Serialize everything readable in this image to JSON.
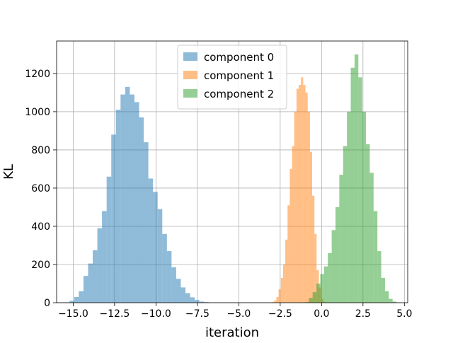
{
  "chart_data": {
    "type": "histogram",
    "title": "",
    "xlabel": "iteration",
    "ylabel": "KL",
    "xlim": [
      -16,
      5.2
    ],
    "ylim": [
      0,
      1370
    ],
    "grid": true,
    "legend_position": "top-center",
    "x_ticks": [
      -15.0,
      -12.5,
      -10.0,
      -7.5,
      -5.0,
      -2.5,
      0.0,
      2.5,
      5.0
    ],
    "x_tick_labels": [
      "−15.0",
      "−12.5",
      "−10.0",
      "−7.5",
      "−5.0",
      "−2.5",
      "0.0",
      "2.5",
      "5.0"
    ],
    "y_ticks": [
      0,
      200,
      400,
      600,
      800,
      1000,
      1200
    ],
    "y_tick_labels": [
      "0",
      "200",
      "400",
      "600",
      "800",
      "1000",
      "1200"
    ],
    "series": [
      {
        "name": "component 0",
        "color": "#1f77b4",
        "opacity": 0.5,
        "bin_start": -15.5,
        "bin_width": 0.28,
        "counts": [
          2,
          10,
          30,
          60,
          140,
          205,
          275,
          390,
          480,
          660,
          880,
          1010,
          1090,
          1130,
          1090,
          1050,
          970,
          840,
          650,
          580,
          490,
          360,
          270,
          185,
          125,
          80,
          50,
          28,
          14,
          6,
          3
        ]
      },
      {
        "name": "component 1",
        "color": "#ff7f0e",
        "opacity": 0.5,
        "bin_start": -3.0,
        "bin_width": 0.135,
        "counts": [
          3,
          12,
          30,
          70,
          130,
          200,
          330,
          510,
          700,
          820,
          1000,
          1120,
          1140,
          1180,
          1140,
          1100,
          1000,
          790,
          560,
          360,
          170,
          80,
          20,
          5
        ]
      },
      {
        "name": "component 2",
        "color": "#2ca02c",
        "opacity": 0.5,
        "bin_start": -1.0,
        "bin_width": 0.23,
        "counts": [
          3,
          25,
          55,
          100,
          150,
          190,
          260,
          380,
          500,
          670,
          820,
          1000,
          1230,
          1300,
          1180,
          1000,
          830,
          680,
          480,
          270,
          130,
          60,
          20,
          6
        ]
      }
    ]
  }
}
